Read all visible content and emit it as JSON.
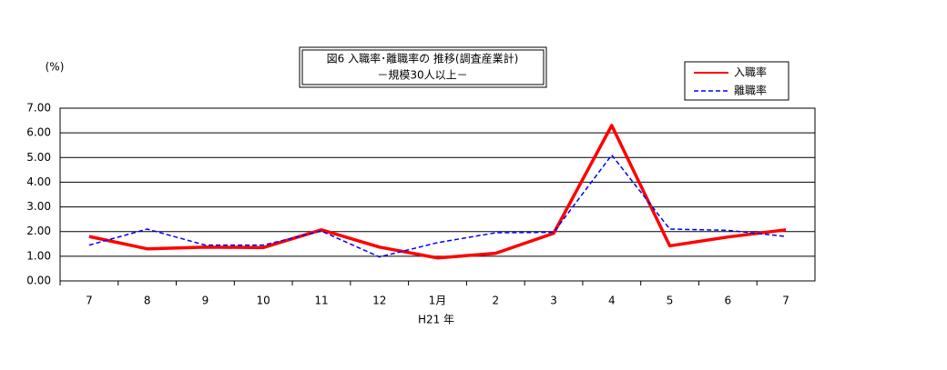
{
  "chart_data": {
    "type": "line",
    "title": "図6 入職率･離職率の 推移(調査産業計)",
    "subtitle": "－規模30人以上－",
    "y_label": "(%)",
    "x_label": "H21 年",
    "categories": [
      "7",
      "8",
      "9",
      "10",
      "11",
      "12",
      "1月",
      "2",
      "3",
      "4",
      "5",
      "6",
      "7"
    ],
    "series": [
      {
        "name": "入職率",
        "color": "#ff0000",
        "dash": false,
        "values": [
          1.8,
          1.3,
          1.37,
          1.35,
          2.07,
          1.37,
          0.93,
          1.12,
          1.93,
          6.3,
          1.42,
          1.78,
          2.07
        ]
      },
      {
        "name": "離職率",
        "color": "#0000ff",
        "dash": true,
        "values": [
          1.45,
          2.1,
          1.45,
          1.45,
          2.02,
          0.97,
          1.55,
          1.95,
          1.97,
          5.1,
          2.1,
          2.05,
          1.8
        ]
      }
    ],
    "ylim": [
      0,
      7
    ],
    "yticks": [
      {
        "value": 0,
        "label": "0.00"
      },
      {
        "value": 1,
        "label": "1.00"
      },
      {
        "value": 2,
        "label": "2.00"
      },
      {
        "value": 3,
        "label": "3.00"
      },
      {
        "value": 4,
        "label": "4.00"
      },
      {
        "value": 5,
        "label": "5.00"
      },
      {
        "value": 6,
        "label": "6.00"
      },
      {
        "value": 7,
        "label": "7.00"
      }
    ],
    "grid": true
  }
}
